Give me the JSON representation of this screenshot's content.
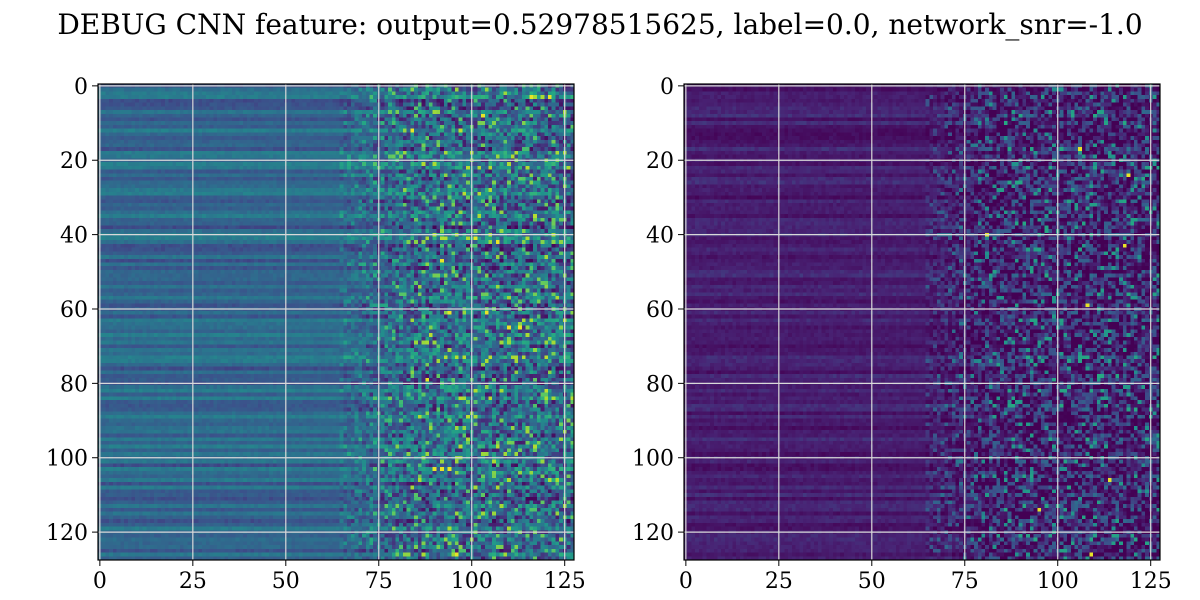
{
  "chart_data": {
    "title": "DEBUG CNN feature: output=0.52978515625, label=0.0, network_snr=-1.0",
    "panels": [
      {
        "type": "heatmap",
        "xlim": [
          0,
          127
        ],
        "ylim": [
          0,
          127
        ],
        "y_inverted": true,
        "xticks": [
          0,
          25,
          50,
          75,
          100,
          125
        ],
        "yticks": [
          0,
          20,
          40,
          60,
          80,
          100,
          120
        ],
        "xtick_labels": [
          "0",
          "25",
          "50",
          "75",
          "100",
          "125"
        ],
        "ytick_labels": [
          "0",
          "20",
          "40",
          "60",
          "80",
          "100",
          "120"
        ],
        "grid": true,
        "colormap": "viridis",
        "grid_size": [
          128,
          128
        ],
        "base_level": 0.33,
        "row_variation": 0.1,
        "noise_start_col": 75,
        "noise_level": 0.32,
        "bright_spots": [
          [
            121,
            3
          ],
          [
            116,
            3
          ],
          [
            94,
            103
          ],
          [
            92,
            103
          ],
          [
            90,
            103
          ],
          [
            104,
            61
          ],
          [
            94,
            61
          ],
          [
            110,
            65
          ],
          [
            113,
            65
          ],
          [
            92,
            47
          ],
          [
            107,
            42
          ],
          [
            101,
            41
          ],
          [
            96,
            126
          ],
          [
            88,
            79
          ],
          [
            103,
            8
          ],
          [
            84,
            12
          ]
        ]
      },
      {
        "type": "heatmap",
        "xlim": [
          0,
          127
        ],
        "ylim": [
          0,
          127
        ],
        "y_inverted": true,
        "xticks": [
          0,
          25,
          50,
          75,
          100,
          125
        ],
        "yticks": [
          0,
          20,
          40,
          60,
          80,
          100,
          120
        ],
        "xtick_labels": [
          "0",
          "25",
          "50",
          "75",
          "100",
          "125"
        ],
        "ytick_labels": [
          "0",
          "20",
          "40",
          "60",
          "80",
          "100",
          "120"
        ],
        "grid": true,
        "colormap": "viridis",
        "grid_size": [
          128,
          128
        ],
        "base_level": 0.1,
        "row_variation": 0.06,
        "noise_start_col": 75,
        "noise_level": 0.3,
        "bright_spots": [
          [
            119,
            24
          ],
          [
            81,
            40
          ],
          [
            108,
            59
          ],
          [
            106,
            17
          ],
          [
            118,
            43
          ],
          [
            109,
            126
          ],
          [
            114,
            106
          ],
          [
            95,
            114
          ]
        ]
      }
    ]
  }
}
